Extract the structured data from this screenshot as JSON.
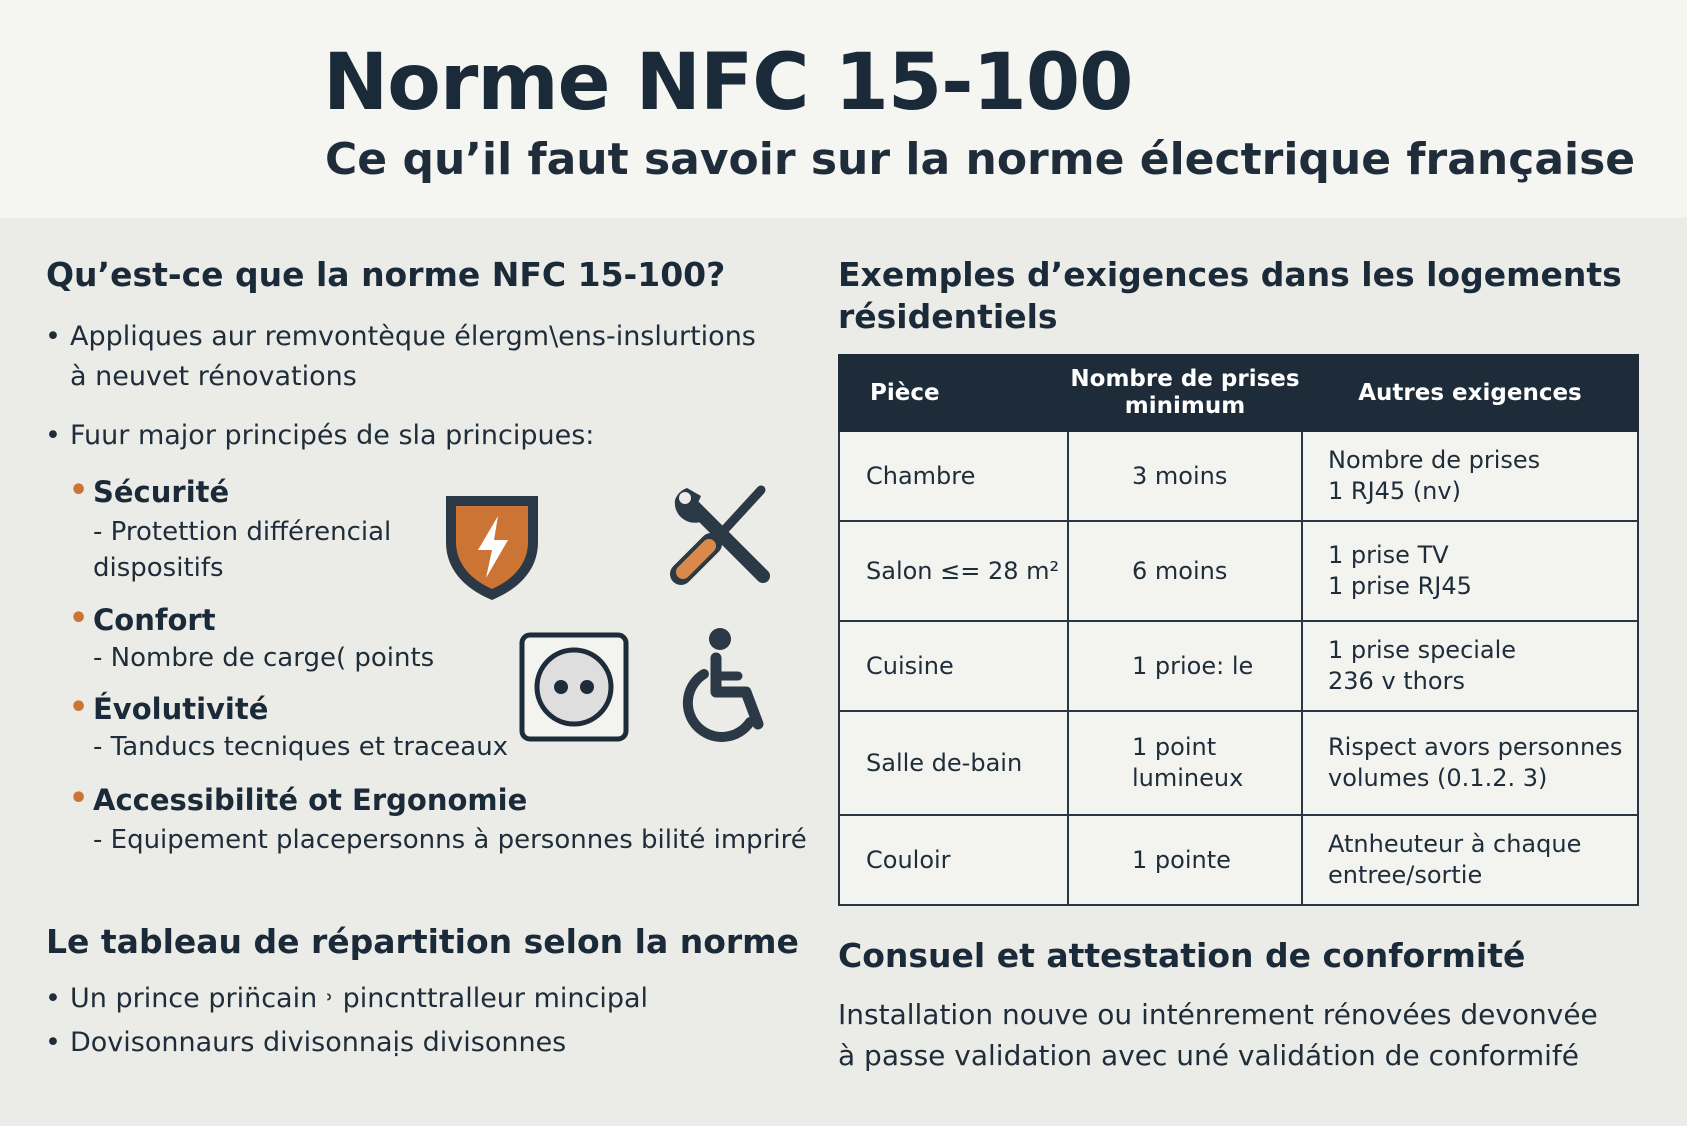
{
  "header": {
    "title": "Norme NFC 15-100",
    "subtitle": "Ce qu’il faut savoir sur la norme électrique française"
  },
  "left": {
    "intro_heading": "Qu’est-ce que la norme NFC 15-100?",
    "intro_bullets": [
      "Appliques aur remvontèque élergm\\ens-inslurtions\nà neuvet rénovations",
      "Fuur major principés de sla principues:"
    ],
    "principles": [
      {
        "title": "Sécurité",
        "desc": "- Protettion différencial\n  dispositifs"
      },
      {
        "title": "Confort",
        "desc": "- Nombre de carge( points"
      },
      {
        "title": "Évolutivité",
        "desc": "- Tanducs tecniques et traceaux"
      },
      {
        "title": "Accessibilité ot Ergonomie",
        "desc": "- Equipement placepersonns à personnes bilité impriré"
      }
    ],
    "icons": [
      "shield-lightning-icon",
      "tools-icon",
      "power-outlet-icon",
      "wheelchair-icon"
    ],
    "tableau_heading": "Le tableau de répartition selon la norme",
    "tableau_bullets": [
      "Un prince prin̈cain ˒ pincnttralleur mincipal",
      "Dovisonnaurs divisonnaịs divisonnes"
    ]
  },
  "right": {
    "examples_heading": "Exemples d’exigences dans les logements\nrésidentiels",
    "table": {
      "headers": [
        "Pièce",
        "Nombre de prises\nminimum",
        "Autres exigences"
      ],
      "rows": [
        [
          "Chambre",
          "3 moins",
          "Nombre de prises\n1 RJ45 (nv)"
        ],
        [
          "Salon ≤= 28 m²",
          "6 moins",
          "1 prise TV\n1 prise RJ45"
        ],
        [
          "Cuisine",
          "1 prioe: le",
          "1 prise speciale\n236 v thors"
        ],
        [
          "Salle de-bain",
          "1 point\nlumineux",
          "Rispect avors personnes\nvolumes (0.1.2. 3)"
        ],
        [
          "Couloir",
          "1 pointe",
          "Atnheuteur à chaque\nentree/sortie"
        ]
      ]
    },
    "consuel_heading": "Consuel et attestation de conformité",
    "consuel_text": "Installation nouve ou inténrement rénovées devonvée\nà passe validation avec uné validátion de conformifé"
  },
  "colors": {
    "dark": "#1e2b38",
    "accent": "#cc7434",
    "background": "#ebebe7",
    "header_bg": "#f5f5f2"
  }
}
